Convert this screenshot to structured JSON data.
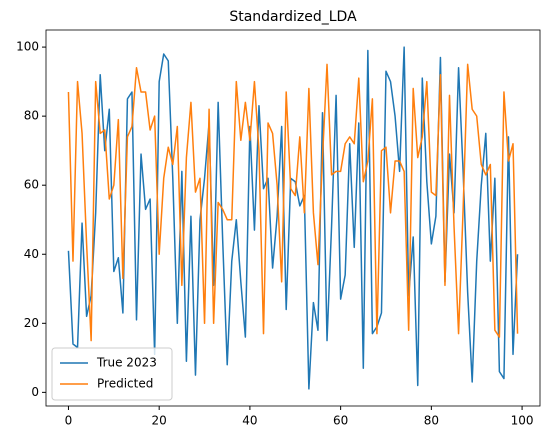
{
  "chart_data": {
    "type": "line",
    "title": "Standardized_LDA",
    "x": [
      0,
      1,
      2,
      3,
      4,
      5,
      6,
      7,
      8,
      9,
      10,
      11,
      12,
      13,
      14,
      15,
      16,
      17,
      18,
      19,
      20,
      21,
      22,
      23,
      24,
      25,
      26,
      27,
      28,
      29,
      30,
      31,
      32,
      33,
      34,
      35,
      36,
      37,
      38,
      39,
      40,
      41,
      42,
      43,
      44,
      45,
      46,
      47,
      48,
      49,
      50,
      51,
      52,
      53,
      54,
      55,
      56,
      57,
      58,
      59,
      60,
      61,
      62,
      63,
      64,
      65,
      66,
      67,
      68,
      69,
      70,
      71,
      72,
      73,
      74,
      75,
      76,
      77,
      78,
      79,
      80,
      81,
      82,
      83,
      84,
      85,
      86,
      87,
      88,
      89,
      90,
      91,
      92,
      93,
      94,
      95,
      96,
      97,
      98,
      99
    ],
    "series": [
      {
        "name": "True 2023",
        "color": "#1f77b4",
        "values": [
          41,
          14,
          13,
          49,
          22,
          28,
          52,
          92,
          70,
          82,
          35,
          39,
          23,
          85,
          87,
          21,
          69,
          53,
          56,
          11,
          90,
          98,
          96,
          62,
          20,
          64,
          9,
          51,
          5,
          50,
          62,
          78,
          31,
          84,
          44,
          8,
          38,
          50,
          32,
          16,
          77,
          47,
          83,
          59,
          62,
          36,
          51,
          77,
          24,
          62,
          61,
          54,
          57,
          1,
          26,
          18,
          81,
          15,
          48,
          86,
          27,
          34,
          72,
          42,
          78,
          7,
          99,
          17,
          19,
          23,
          93,
          90,
          80,
          64,
          100,
          28,
          45,
          2,
          91,
          61,
          43,
          51,
          97,
          32,
          69,
          52,
          94,
          64,
          29,
          3,
          38,
          60,
          75,
          38,
          62,
          6,
          4,
          74,
          11,
          40
        ]
      },
      {
        "name": "Predicted",
        "color": "#ff7f0e",
        "values": [
          87,
          38,
          90,
          75,
          43,
          15,
          90,
          75,
          76,
          56,
          60,
          79,
          33,
          74,
          77,
          94,
          87,
          87,
          76,
          80,
          40,
          62,
          71,
          66,
          77,
          31,
          68,
          84,
          58,
          62,
          20,
          82,
          20,
          55,
          53,
          50,
          50,
          90,
          73,
          84,
          73,
          90,
          70,
          17,
          78,
          75,
          60,
          32,
          87,
          59,
          57,
          74,
          52,
          88,
          52,
          37,
          68,
          95,
          63,
          64,
          64,
          72,
          74,
          72,
          91,
          61,
          67,
          85,
          17,
          70,
          71,
          52,
          67,
          67,
          64,
          18,
          88,
          68,
          74,
          90,
          58,
          57,
          92,
          31,
          86,
          48,
          17,
          53,
          95,
          82,
          80,
          66,
          63,
          66,
          18,
          16,
          87,
          67,
          72,
          17
        ]
      }
    ],
    "xlim": [
      -4.95,
      103.95
    ],
    "ylim": [
      -3.95,
      104.95
    ],
    "xticks": [
      0,
      20,
      40,
      60,
      80,
      100
    ],
    "yticks": [
      0,
      20,
      40,
      60,
      80,
      100
    ],
    "legend": "lower left"
  }
}
